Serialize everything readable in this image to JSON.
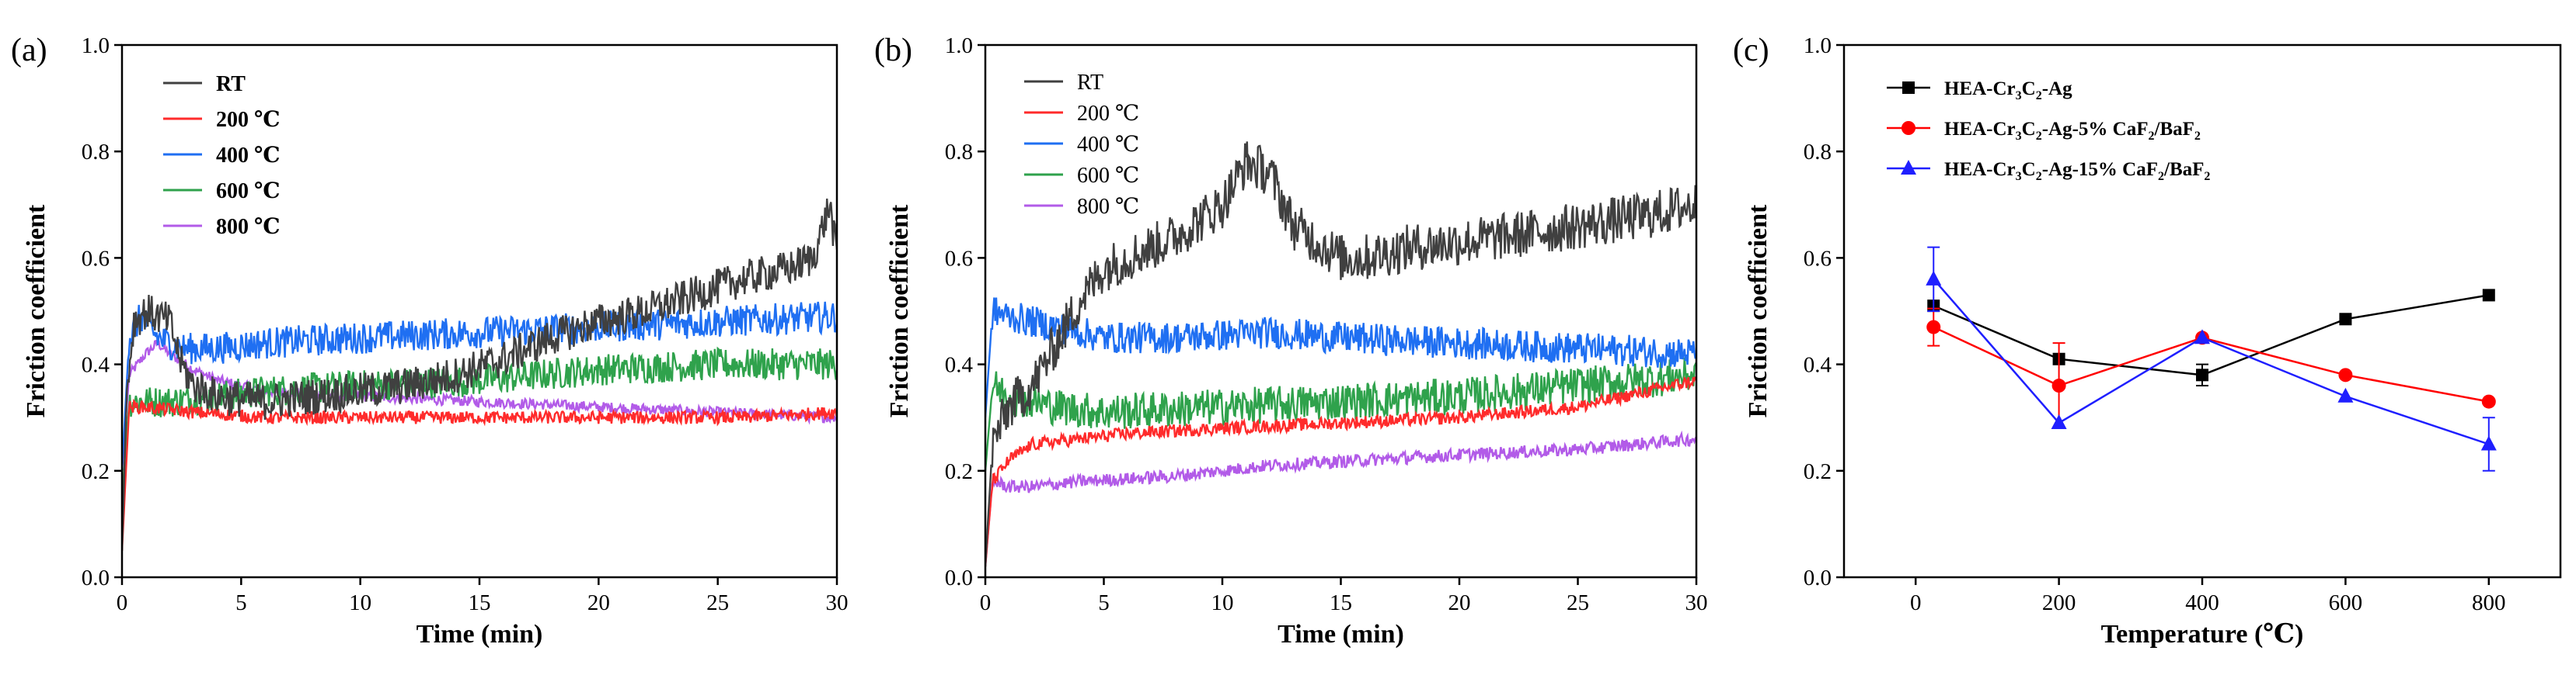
{
  "figure": {
    "panel_labels": [
      "(a)",
      "(b)",
      "(c)"
    ]
  },
  "chart_data": [
    {
      "type": "line",
      "panel": "(a)",
      "title": "",
      "xlabel": "Time (min)",
      "ylabel": "Friction coefficient",
      "xlim": [
        0,
        30
      ],
      "ylim": [
        0,
        1.0
      ],
      "xticks": [
        0,
        5,
        10,
        15,
        20,
        25,
        30
      ],
      "yticks": [
        0.0,
        0.2,
        0.4,
        0.6,
        0.8,
        1.0
      ],
      "legend_position": "top-left",
      "legend_bold": true,
      "series": [
        {
          "name": "RT",
          "color": "#404040",
          "noise": 0.035,
          "x": [
            0,
            0.2,
            0.5,
            1,
            2,
            2.5,
            3,
            4,
            6,
            8,
            10,
            12,
            14,
            16,
            18,
            20,
            22,
            24,
            26,
            28,
            29,
            29.7,
            30
          ],
          "y": [
            0.05,
            0.35,
            0.48,
            0.5,
            0.48,
            0.4,
            0.36,
            0.34,
            0.33,
            0.34,
            0.35,
            0.36,
            0.38,
            0.41,
            0.45,
            0.48,
            0.5,
            0.53,
            0.56,
            0.58,
            0.6,
            0.7,
            0.6
          ]
        },
        {
          "name": "200 ℃",
          "color": "#ff2b2b",
          "noise": 0.012,
          "x": [
            0,
            0.3,
            1,
            3,
            6,
            10,
            14,
            18,
            22,
            26,
            30
          ],
          "y": [
            0.05,
            0.32,
            0.32,
            0.31,
            0.3,
            0.3,
            0.3,
            0.3,
            0.3,
            0.3,
            0.31
          ]
        },
        {
          "name": "400 ℃",
          "color": "#1f6ff2",
          "noise": 0.03,
          "x": [
            0,
            0.3,
            0.8,
            1.5,
            2.5,
            4,
            6,
            10,
            15,
            20,
            25,
            30
          ],
          "y": [
            0.2,
            0.45,
            0.49,
            0.45,
            0.43,
            0.43,
            0.44,
            0.45,
            0.46,
            0.47,
            0.48,
            0.49
          ]
        },
        {
          "name": "600 ℃",
          "color": "#2fa24c",
          "noise": 0.03,
          "x": [
            0,
            0.3,
            1,
            2,
            4,
            6,
            10,
            15,
            20,
            25,
            30
          ],
          "y": [
            0.15,
            0.33,
            0.33,
            0.33,
            0.34,
            0.35,
            0.36,
            0.37,
            0.39,
            0.4,
            0.4
          ]
        },
        {
          "name": "800 ℃",
          "color": "#b25be8",
          "noise": 0.01,
          "x": [
            0,
            0.3,
            1,
            1.5,
            2,
            3,
            4,
            6,
            10,
            15,
            20,
            25,
            30
          ],
          "y": [
            0.2,
            0.38,
            0.42,
            0.44,
            0.42,
            0.39,
            0.37,
            0.35,
            0.34,
            0.33,
            0.32,
            0.31,
            0.3
          ]
        }
      ]
    },
    {
      "type": "line",
      "panel": "(b)",
      "title": "",
      "xlabel": "Time (min)",
      "ylabel": "Friction coefficient",
      "xlim": [
        0,
        30
      ],
      "ylim": [
        0,
        1.0
      ],
      "xticks": [
        0,
        5,
        10,
        15,
        20,
        25,
        30
      ],
      "yticks": [
        0.0,
        0.2,
        0.4,
        0.6,
        0.8,
        1.0
      ],
      "legend_position": "top-left",
      "legend_bold": false,
      "series": [
        {
          "name": "RT",
          "color": "#404040",
          "noise": 0.045,
          "x": [
            0,
            0.3,
            1,
            2,
            3,
            4,
            5,
            6,
            8,
            10,
            11,
            12,
            13,
            14,
            15,
            16,
            18,
            20,
            22,
            25,
            28,
            30
          ],
          "y": [
            0.02,
            0.25,
            0.32,
            0.36,
            0.44,
            0.52,
            0.58,
            0.6,
            0.64,
            0.7,
            0.78,
            0.76,
            0.66,
            0.63,
            0.6,
            0.6,
            0.62,
            0.63,
            0.64,
            0.66,
            0.68,
            0.7
          ]
        },
        {
          "name": "200 ℃",
          "color": "#ff2b2b",
          "noise": 0.012,
          "x": [
            0,
            0.3,
            1,
            2,
            4,
            6,
            10,
            15,
            20,
            25,
            30
          ],
          "y": [
            0.02,
            0.18,
            0.22,
            0.25,
            0.26,
            0.27,
            0.28,
            0.29,
            0.3,
            0.32,
            0.37
          ]
        },
        {
          "name": "400 ℃",
          "color": "#1f6ff2",
          "noise": 0.03,
          "x": [
            0,
            0.3,
            1,
            3,
            5,
            8,
            12,
            15,
            20,
            25,
            30
          ],
          "y": [
            0.3,
            0.5,
            0.49,
            0.47,
            0.45,
            0.45,
            0.46,
            0.45,
            0.44,
            0.43,
            0.42
          ]
        },
        {
          "name": "600 ℃",
          "color": "#2fa24c",
          "noise": 0.035,
          "x": [
            0,
            0.3,
            1,
            3,
            5,
            10,
            15,
            20,
            25,
            30
          ],
          "y": [
            0.2,
            0.36,
            0.34,
            0.32,
            0.31,
            0.32,
            0.33,
            0.34,
            0.36,
            0.38
          ]
        },
        {
          "name": "800 ℃",
          "color": "#b25be8",
          "noise": 0.012,
          "x": [
            0,
            0.3,
            1,
            2,
            4,
            8,
            12,
            16,
            20,
            25,
            30
          ],
          "y": [
            0.02,
            0.18,
            0.17,
            0.17,
            0.18,
            0.19,
            0.21,
            0.22,
            0.23,
            0.24,
            0.26
          ]
        }
      ]
    },
    {
      "type": "line",
      "panel": "(c)",
      "title": "",
      "xlabel": "Temperature (℃)",
      "ylabel": "Friction coefficient",
      "xlim": [
        -100,
        900
      ],
      "ylim": [
        0,
        1.0
      ],
      "xticks": [
        0,
        200,
        400,
        600,
        800
      ],
      "yticks": [
        0.0,
        0.2,
        0.4,
        0.6,
        0.8,
        1.0
      ],
      "legend_position": "top-left",
      "series": [
        {
          "name": "HEA-Cr3C2-Ag",
          "label_parts": [
            "HEA-Cr",
            "3",
            "C",
            "2",
            "-Ag"
          ],
          "color": "#000000",
          "marker": "square",
          "x": [
            25,
            200,
            400,
            600,
            800
          ],
          "y": [
            0.51,
            0.41,
            0.38,
            0.485,
            0.53
          ],
          "err": [
            0.0,
            0.0,
            0.02,
            0.0,
            0.0
          ]
        },
        {
          "name": "HEA-Cr3C2-Ag-5% CaF2/BaF2",
          "label_parts": [
            "HEA-Cr",
            "3",
            "C",
            "2",
            "-Ag-5% CaF",
            "2",
            "/BaF",
            "2"
          ],
          "color": "#ff0000",
          "marker": "circle",
          "x": [
            25,
            200,
            400,
            600,
            800
          ],
          "y": [
            0.47,
            0.36,
            0.45,
            0.38,
            0.33
          ],
          "err": [
            0.035,
            0.08,
            0.0,
            0.0,
            0.0
          ]
        },
        {
          "name": "HEA-Cr3C2-Ag-15% CaF2/BaF2",
          "label_parts": [
            "HEA-Cr",
            "3",
            "C",
            "2",
            "-Ag-15% CaF",
            "2",
            "/BaF",
            "2"
          ],
          "color": "#1f1fff",
          "marker": "triangle",
          "x": [
            25,
            200,
            400,
            600,
            800
          ],
          "y": [
            0.56,
            0.29,
            0.45,
            0.34,
            0.25
          ],
          "err": [
            0.06,
            0.0,
            0.0,
            0.0,
            0.05
          ]
        }
      ]
    }
  ]
}
